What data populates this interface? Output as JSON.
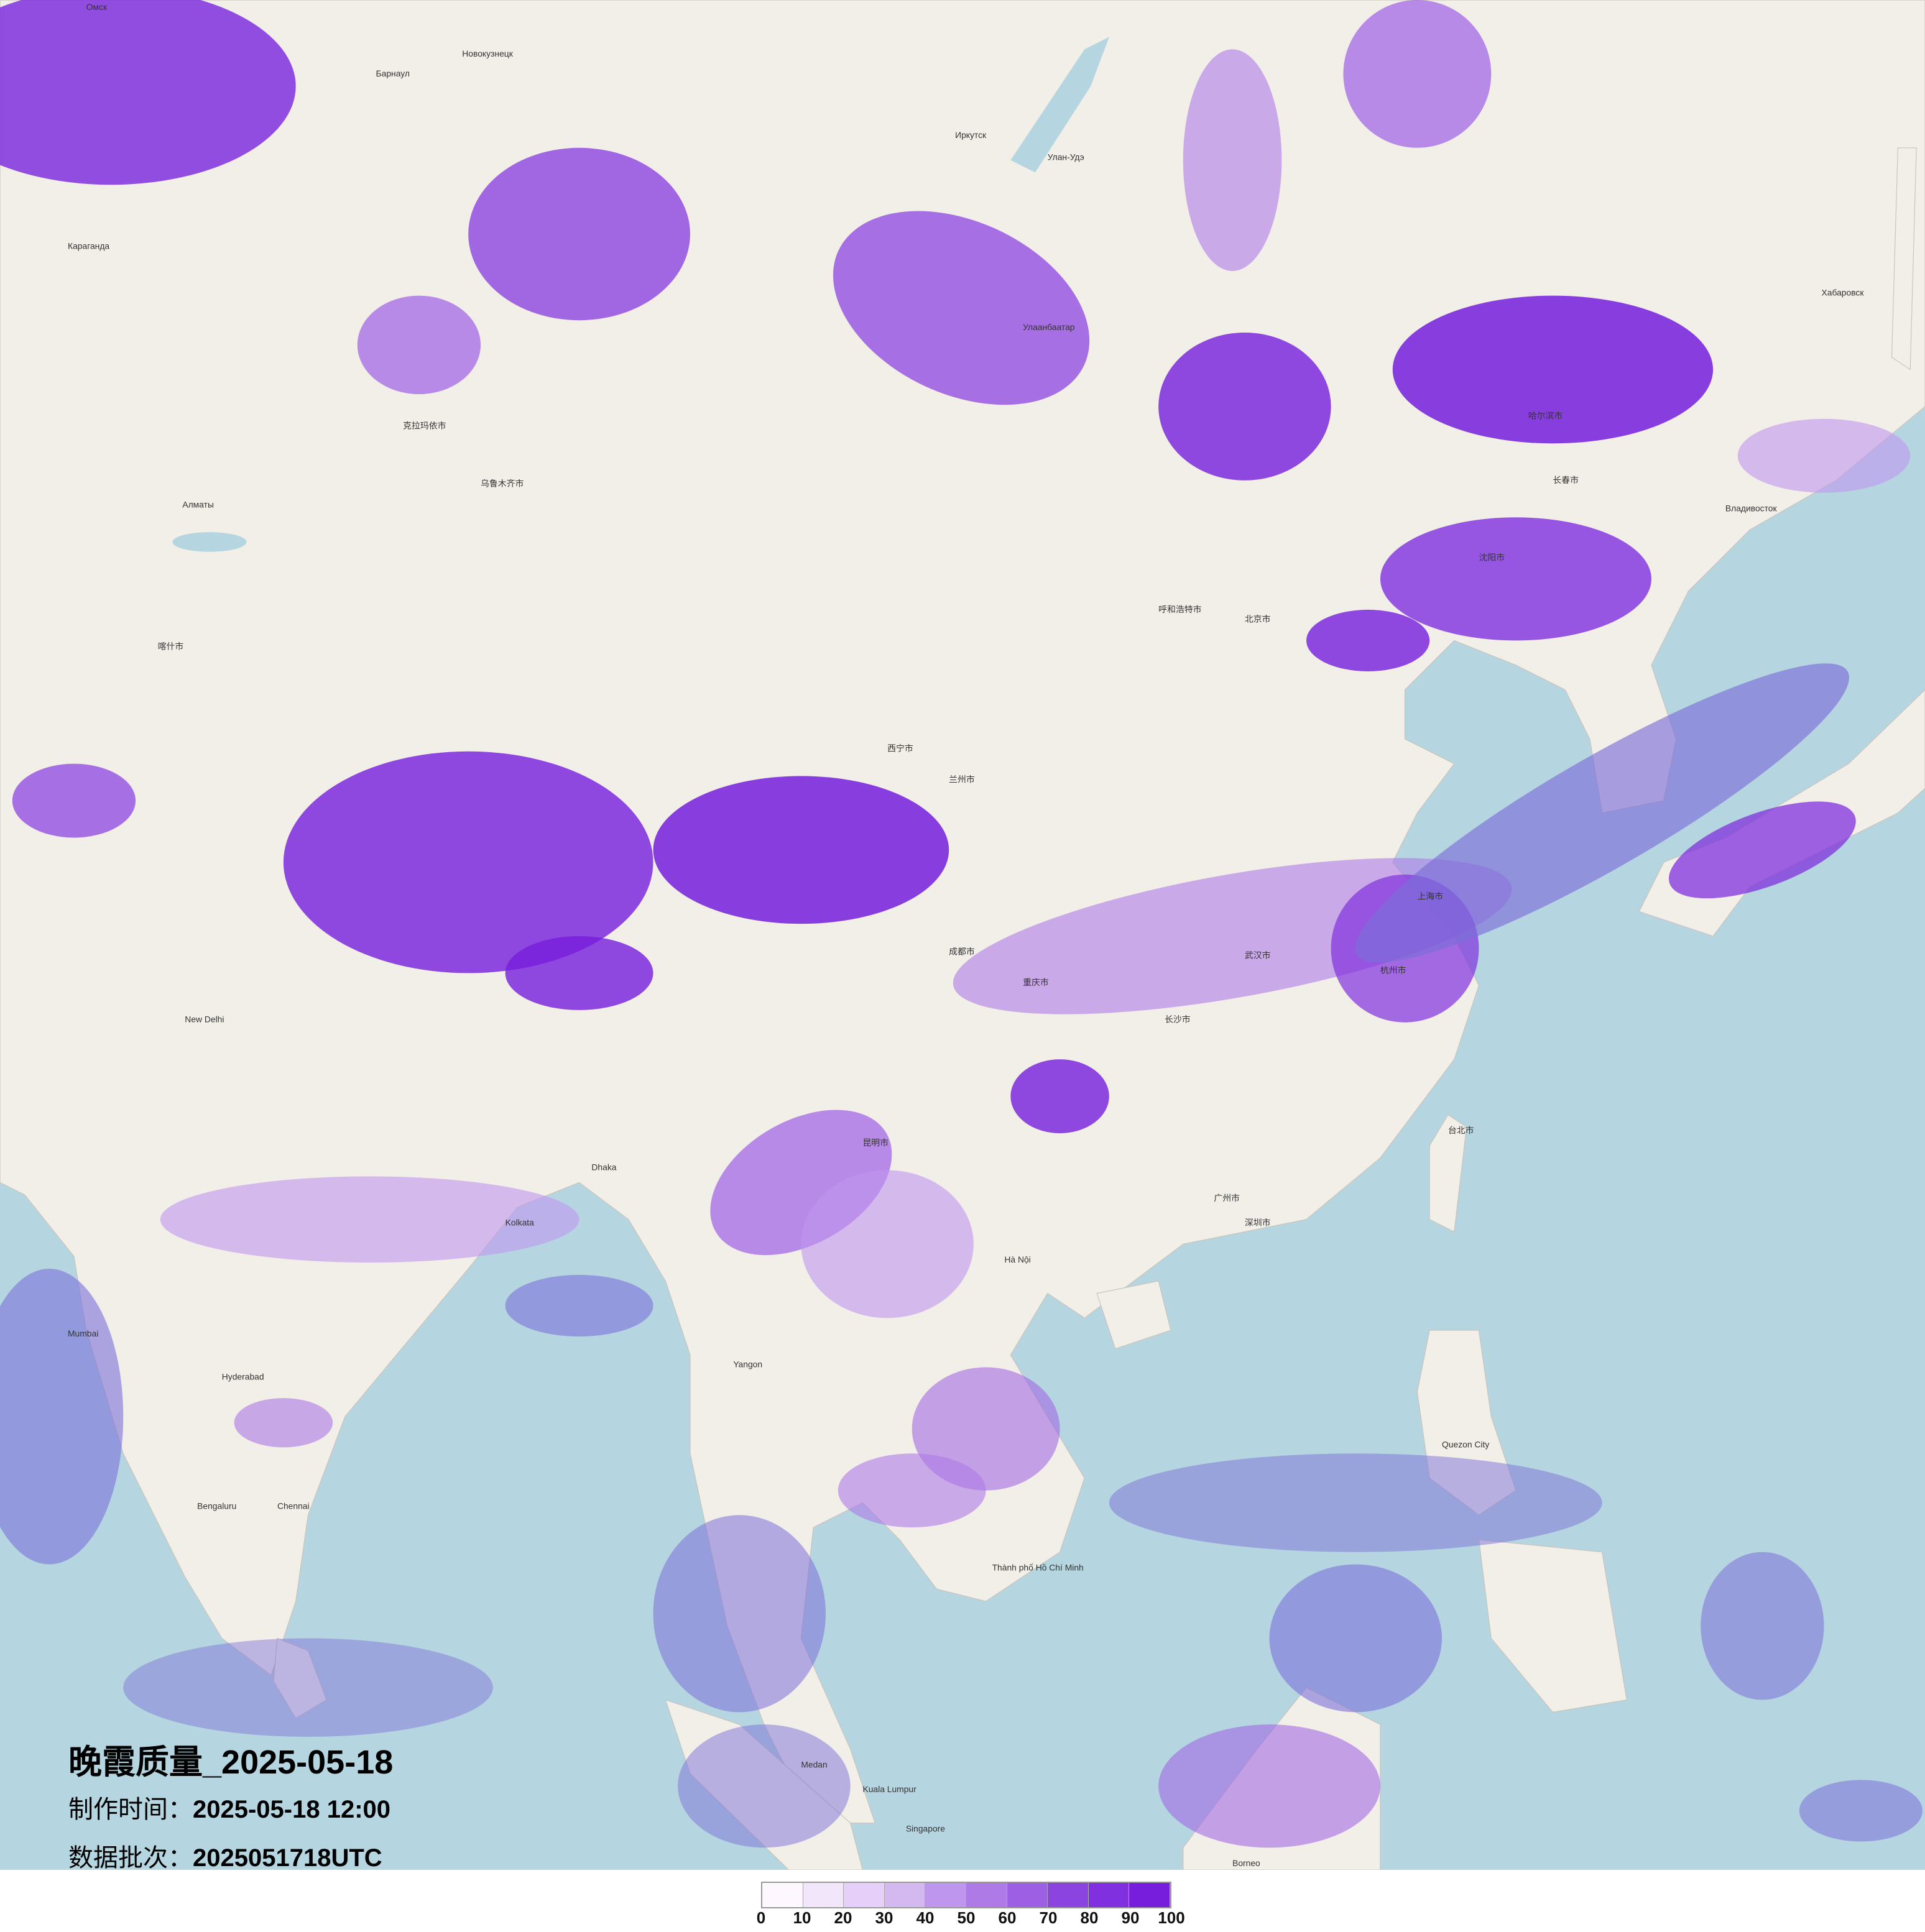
{
  "title": "晚霞质量_2025-05-18",
  "production_time": {
    "label": "制作时间：",
    "value": "2025-05-18 12:00"
  },
  "data_batch": {
    "label": "数据批次：",
    "value": "2025051718UTC"
  },
  "colors": {
    "land": "#f2efe9",
    "sea": "#b5d6e0"
  },
  "legend": {
    "ticks": [
      "0",
      "10",
      "20",
      "30",
      "40",
      "50",
      "60",
      "70",
      "80",
      "90",
      "100"
    ],
    "colors": [
      "#fdf8fd",
      "#f2e6fb",
      "#e6d0fa",
      "#d4b8f0",
      "#bf96ee",
      "#ae7ae6",
      "#9d5fe4",
      "#8c44e0",
      "#8030de",
      "#761edc"
    ]
  },
  "map_labels": [
    "Омск",
    "Барнаул",
    "Новокузнецк",
    "Иркутск",
    "Улан-Удэ",
    "Караганда",
    "Алматы",
    "Улаанбаатар",
    "克拉玛依市",
    "乌鲁木齐市",
    "喀什市",
    "呼和浩特市",
    "北京市",
    "沈阳市",
    "长春市",
    "哈尔滨市",
    "Хабаровск",
    "Владивосток",
    "西宁市",
    "兰州市",
    "成都市",
    "重庆市",
    "武汉市",
    "上海市",
    "杭州市",
    "长沙市",
    "广州市",
    "深圳市",
    "昆明市",
    "台北市",
    "New Delhi",
    "Kolkata",
    "Mumbai",
    "Hyderabad",
    "Chennai",
    "Bengaluru",
    "Hà Nội",
    "Thành phố Hồ Chí Minh",
    "Kuala Lumpur",
    "Singapore",
    "Quezon City",
    "Medan",
    "Borneo",
    "Dhaka",
    "Yangon"
  ]
}
